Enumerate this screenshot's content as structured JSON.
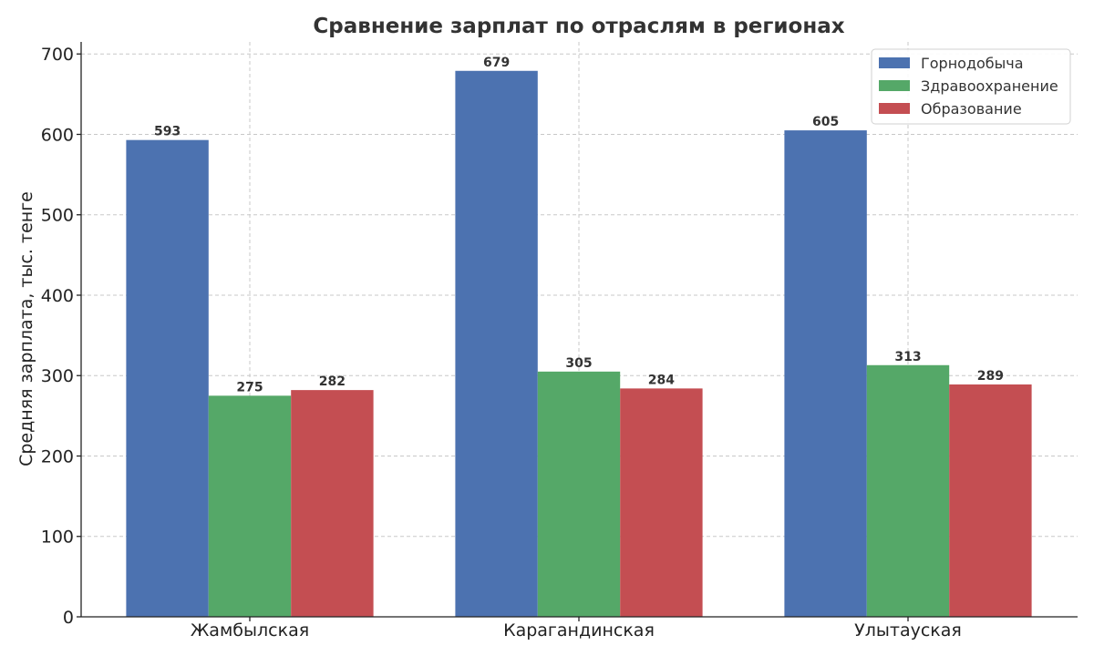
{
  "chart_data": {
    "type": "bar",
    "title": "Сравнение зарплат по отраслям в регионах",
    "xlabel": "",
    "ylabel": "Средняя зарплата, тыс. тенге",
    "categories": [
      "Жамбылская",
      "Карагандинская",
      "Улытауская"
    ],
    "series": [
      {
        "name": "Горнодобыча",
        "color": "#4c72b0",
        "values": [
          593,
          679,
          605
        ]
      },
      {
        "name": "Здравоохранение",
        "color": "#55a868",
        "values": [
          275,
          305,
          313
        ]
      },
      {
        "name": "Образование",
        "color": "#c44e52",
        "values": [
          282,
          284,
          289
        ]
      }
    ],
    "ylim": [
      0,
      715
    ],
    "yticks": [
      0,
      100,
      200,
      300,
      400,
      500,
      600,
      700
    ],
    "grid": true,
    "legend_position": "top-right",
    "data_labels": true
  }
}
